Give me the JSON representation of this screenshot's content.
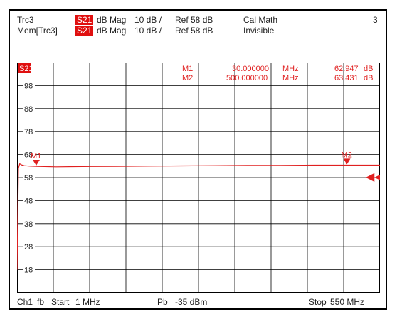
{
  "header": {
    "trace": {
      "name": "Trc3",
      "param": "S21",
      "format": "dB Mag",
      "scale": "10 dB /",
      "ref": "Ref 58 dB",
      "extra": "Cal Math",
      "channel_num": "3"
    },
    "memory": {
      "name": "Mem[Trc3]",
      "param": "S21",
      "format": "dB Mag",
      "scale": "10 dB /",
      "ref": "Ref 58 dB",
      "extra": "Invisible"
    }
  },
  "diagram": {
    "trace_label": "S21",
    "markers": [
      {
        "name": "M1",
        "freq": "30.000000",
        "unit": "MHz",
        "value": "62.947",
        "value_unit": "dB"
      },
      {
        "name": "M2",
        "freq": "500.000000",
        "unit": "MHz",
        "value": "63.431",
        "value_unit": "dB"
      }
    ],
    "y_ticks": [
      "98",
      "88",
      "78",
      "68",
      "58",
      "48",
      "38",
      "28",
      "18"
    ],
    "ref_arrow": "◀◀"
  },
  "footer": {
    "channel": "Ch1",
    "mode": "fb",
    "start_label": "Start",
    "start": "1 MHz",
    "power_label": "Pb",
    "power": "-35 dBm",
    "stop_label": "Stop",
    "stop": "550 MHz"
  },
  "colors": {
    "trace": "#e02020",
    "grid": "#000000",
    "chip": "#e01010"
  },
  "chart_data": {
    "type": "line",
    "xlim": [
      1,
      550
    ],
    "ylim": [
      8,
      108
    ],
    "grid": true,
    "series": [
      {
        "x": [
          1,
          3,
          5,
          8,
          12,
          20,
          30,
          60,
          100,
          150,
          200,
          250,
          300,
          350,
          400,
          450,
          500,
          550
        ],
        "y": [
          18,
          62,
          64,
          63.5,
          63.2,
          63.0,
          62.9,
          62.7,
          62.8,
          62.9,
          63.0,
          63.1,
          63.2,
          63.3,
          63.3,
          63.4,
          63.4,
          63.4
        ]
      }
    ],
    "markers": [
      {
        "name": "M1",
        "x": 30,
        "y": 62.947
      },
      {
        "name": "M2",
        "x": 500,
        "y": 63.431
      }
    ]
  }
}
